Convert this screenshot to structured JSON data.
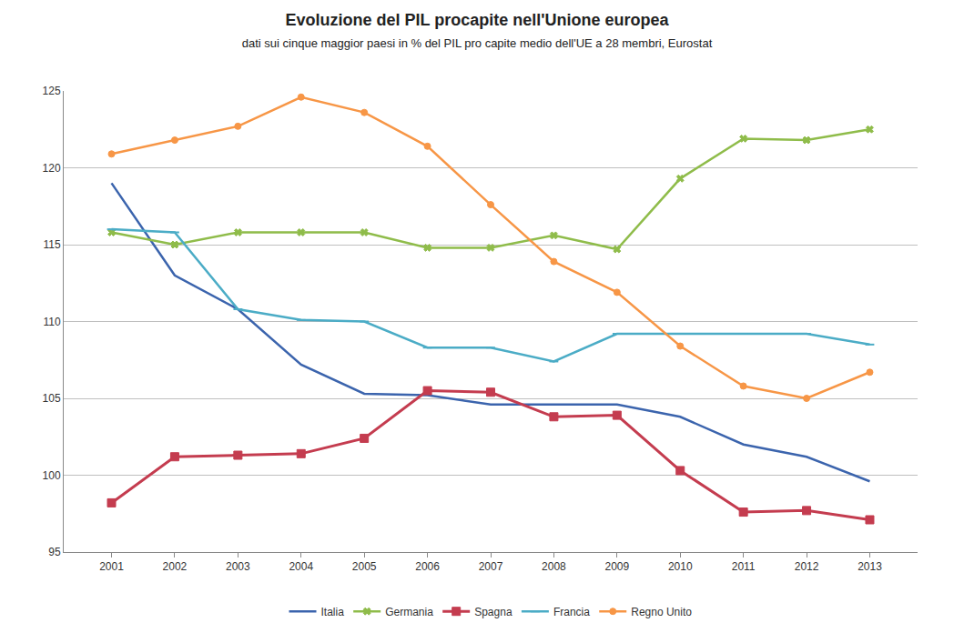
{
  "chart_data": {
    "type": "line",
    "title": "Evoluzione del PIL procapite nell'Unione europea",
    "subtitle": "dati sui cinque maggior paesi in % del PIL pro capite medio dell'UE a 28 membri, Eurostat",
    "categories": [
      "2001",
      "2002",
      "2003",
      "2004",
      "2005",
      "2006",
      "2007",
      "2008",
      "2009",
      "2010",
      "2011",
      "2012",
      "2013"
    ],
    "series": [
      {
        "name": "Italia",
        "color": "#3b64ad",
        "marker": "none",
        "values": [
          119,
          113,
          110.8,
          107.2,
          105.3,
          105.2,
          104.6,
          104.6,
          104.6,
          103.8,
          102,
          101.2,
          99.6
        ]
      },
      {
        "name": "Germania",
        "color": "#8fbc4a",
        "marker": "x",
        "values": [
          115.8,
          115,
          115.8,
          115.8,
          115.8,
          114.8,
          114.8,
          115.6,
          114.7,
          119.3,
          121.9,
          121.8,
          122.5
        ]
      },
      {
        "name": "Spagna",
        "color": "#c43c4f",
        "marker": "square",
        "values": [
          98.2,
          101.2,
          101.3,
          101.4,
          102.4,
          105.5,
          105.4,
          103.8,
          103.9,
          100.3,
          97.6,
          97.7,
          97.1
        ]
      },
      {
        "name": "Francia",
        "color": "#4bacc6",
        "marker": "dash",
        "values": [
          116,
          115.8,
          110.8,
          110.1,
          110,
          108.3,
          108.3,
          107.4,
          109.2,
          109.2,
          109.2,
          109.2,
          108.5
        ]
      },
      {
        "name": "Regno Unito",
        "color": "#f79646",
        "marker": "circle",
        "values": [
          120.9,
          121.8,
          122.7,
          124.6,
          123.6,
          121.4,
          117.6,
          113.9,
          111.9,
          108.4,
          105.8,
          105,
          106.7
        ]
      }
    ],
    "ylim": [
      95,
      125
    ],
    "yticks": [
      95,
      100,
      105,
      110,
      115,
      120,
      125
    ],
    "grid": true,
    "legend": "bottom"
  }
}
